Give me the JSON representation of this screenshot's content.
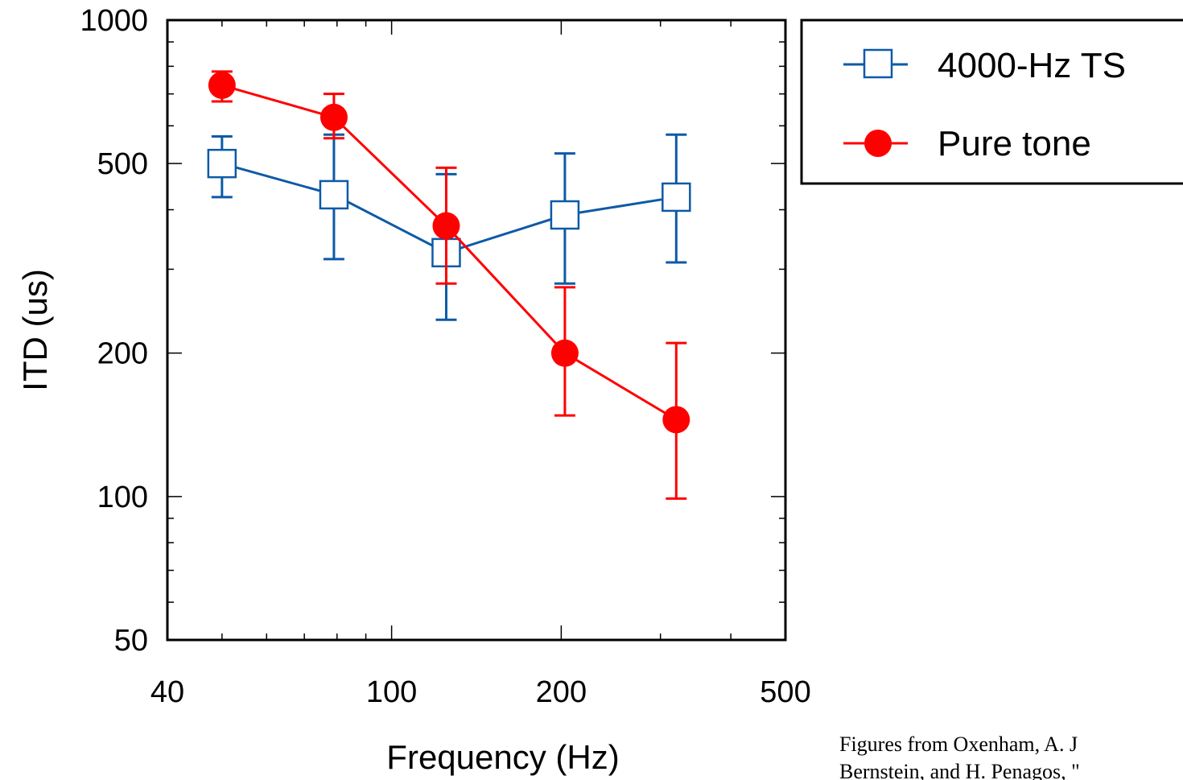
{
  "chart_data": {
    "type": "line",
    "xlabel": "Frequency (Hz)",
    "ylabel": "ITD (us)",
    "x_scale": "log",
    "y_scale": "log",
    "xlim": [
      40,
      500
    ],
    "ylim": [
      50,
      1000
    ],
    "x_ticks": [
      40,
      100,
      200,
      500
    ],
    "y_ticks": [
      50,
      100,
      200,
      500,
      1000
    ],
    "grid": false,
    "legend_position": "top-right",
    "series": [
      {
        "name": "4000-Hz TS",
        "color": "#0d5aa7",
        "marker": "open-square",
        "x": [
          50,
          79,
          125,
          203,
          320
        ],
        "y": [
          500,
          430,
          325,
          390,
          425
        ],
        "err_low": [
          425,
          315,
          235,
          280,
          310
        ],
        "err_high": [
          570,
          575,
          475,
          525,
          575
        ]
      },
      {
        "name": "Pure tone",
        "color": "#ff0000",
        "marker": "filled-circle",
        "x": [
          50,
          79,
          125,
          203,
          320
        ],
        "y": [
          730,
          625,
          370,
          200,
          145
        ],
        "err_low": [
          675,
          565,
          280,
          148,
          99
        ],
        "err_high": [
          780,
          700,
          490,
          275,
          210
        ]
      }
    ]
  },
  "credit": {
    "line1": "Figures from Oxenham, A. J",
    "line2": "Bernstein, and H. Penagos, \""
  }
}
